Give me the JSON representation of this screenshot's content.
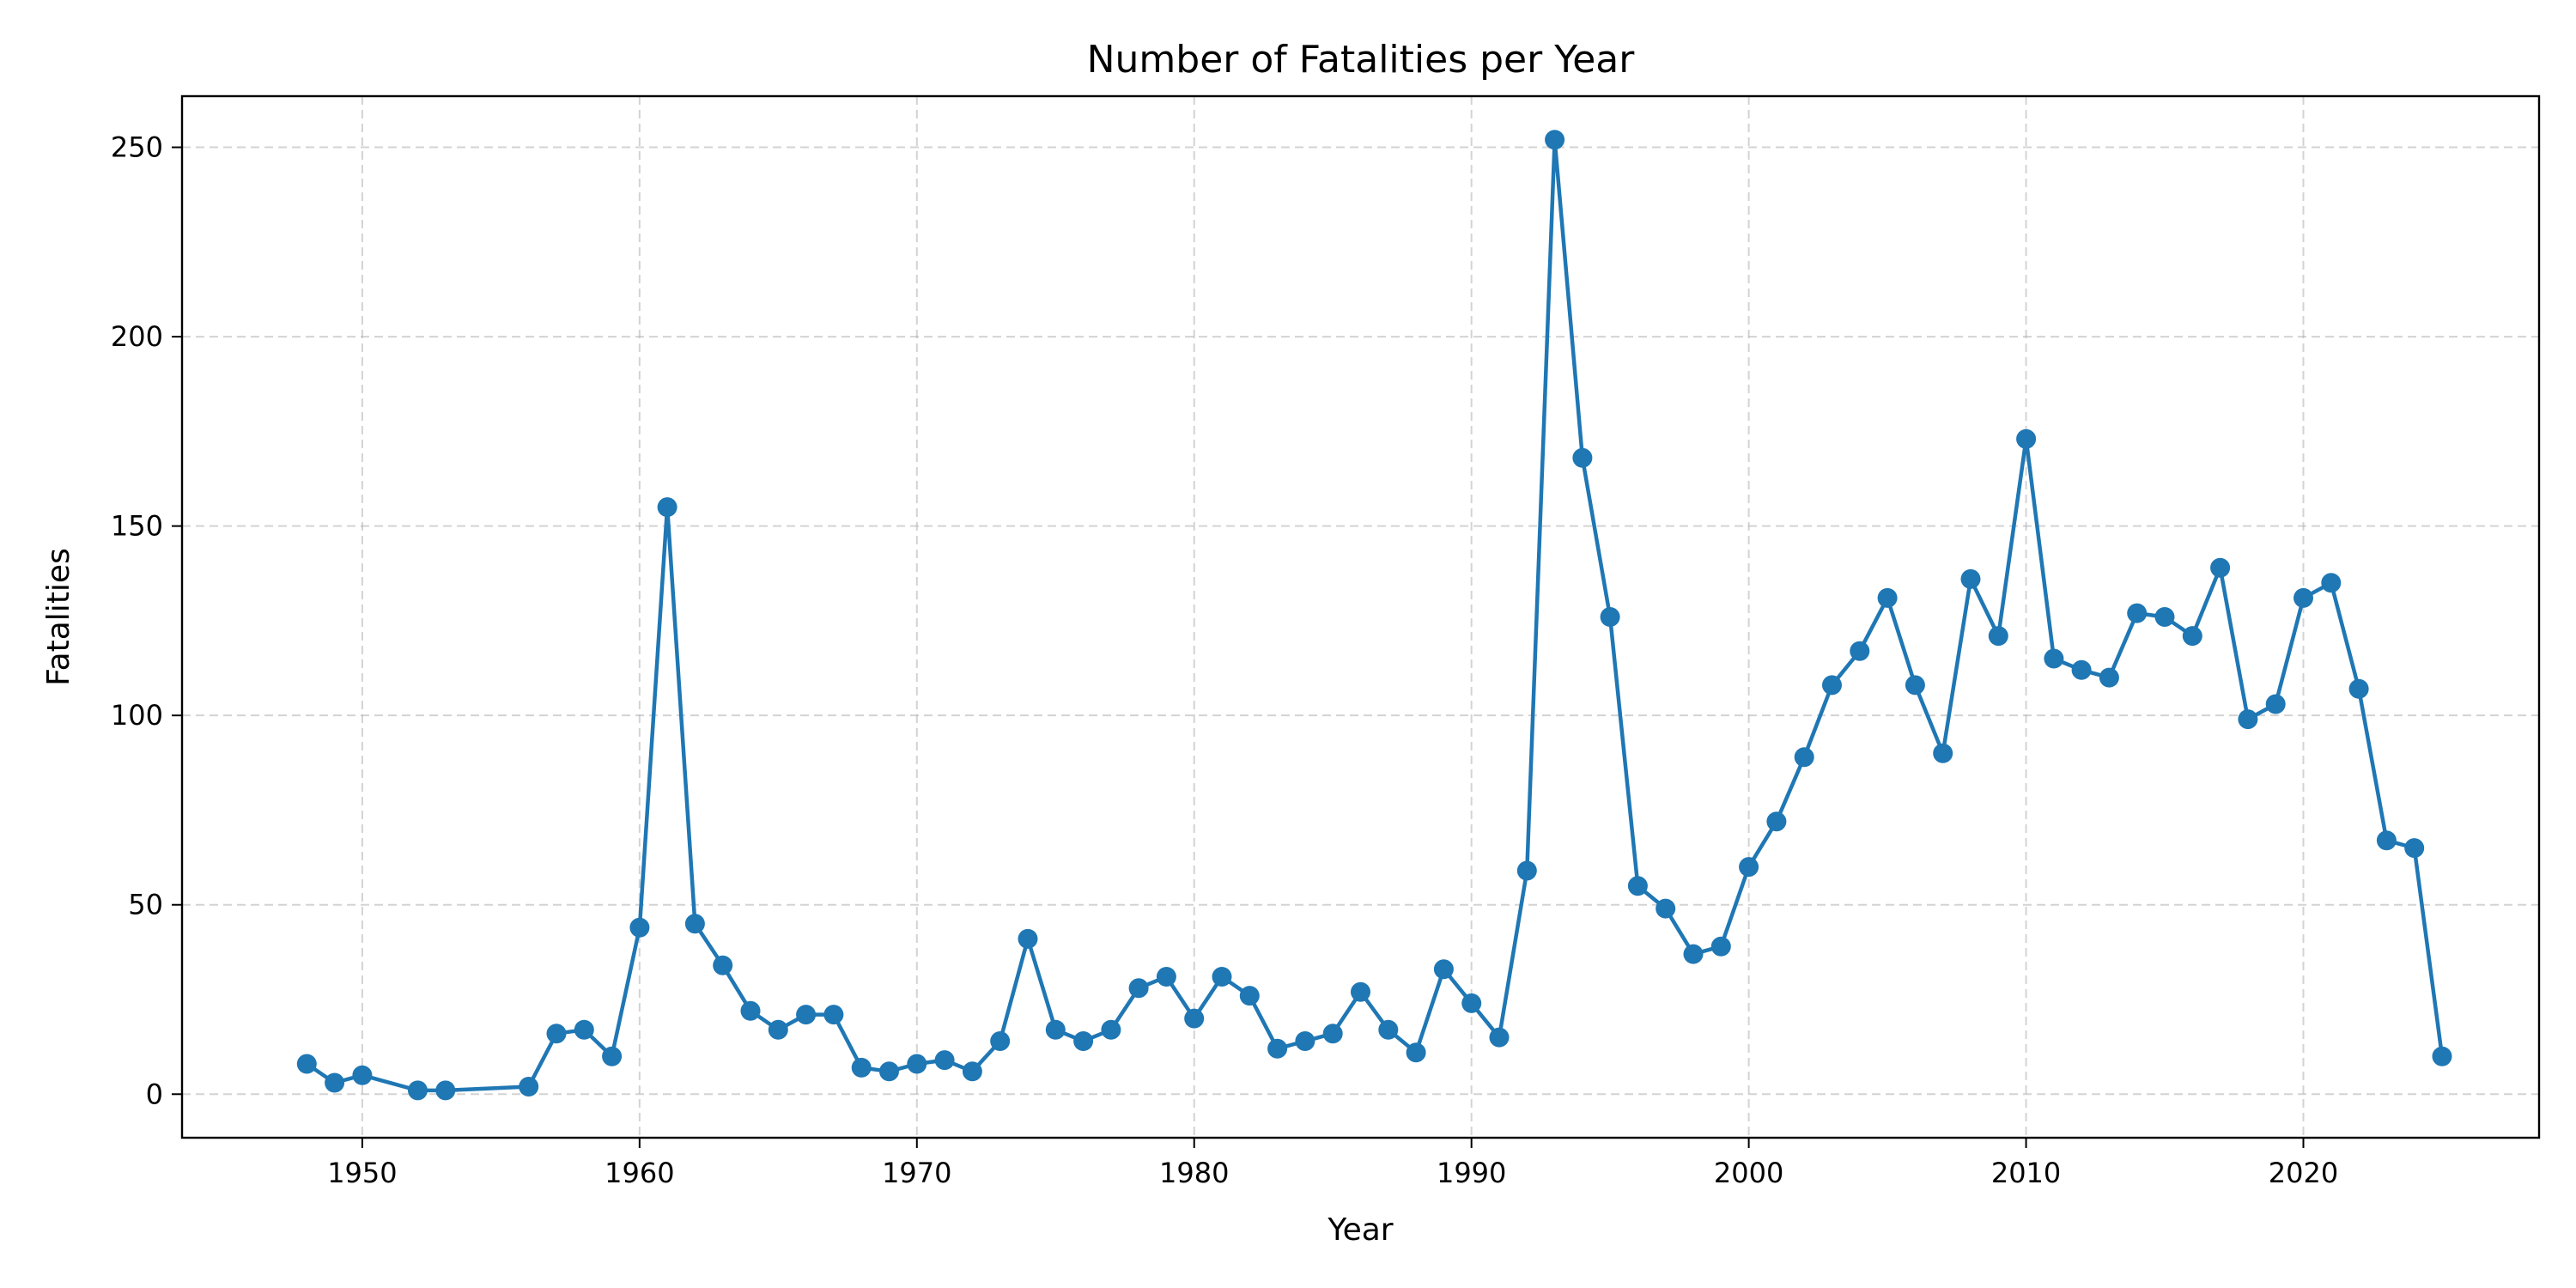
{
  "chart_data": {
    "type": "line",
    "title": "Number of Fatalities per Year",
    "xlabel": "Year",
    "ylabel": "Fatalities",
    "xlim": [
      1943.5,
      2028.5
    ],
    "ylim": [
      -11.5,
      263.5
    ],
    "xticks": [
      1950,
      1960,
      1970,
      1980,
      1990,
      2000,
      2010,
      2020
    ],
    "yticks": [
      0,
      50,
      100,
      150,
      200,
      250
    ],
    "grid": true,
    "legend": "none",
    "marker": "circle",
    "color": "#1f77b4",
    "series": [
      {
        "x": [
          1948,
          1949,
          1950,
          1952,
          1953,
          1956,
          1957,
          1958,
          1959,
          1960,
          1961,
          1962,
          1963,
          1964,
          1965,
          1966,
          1967,
          1968,
          1969,
          1970,
          1971,
          1972,
          1973,
          1974,
          1975,
          1976,
          1977,
          1978,
          1979,
          1980,
          1981,
          1982,
          1983,
          1984,
          1985,
          1986,
          1987,
          1988,
          1989,
          1990,
          1991,
          1992,
          1993,
          1994,
          1995,
          1996,
          1997,
          1998,
          1999,
          2000,
          2001,
          2002,
          2003,
          2004,
          2005,
          2006,
          2007,
          2008,
          2009,
          2010,
          2011,
          2012,
          2013,
          2014,
          2015,
          2016,
          2017,
          2018,
          2019,
          2020,
          2021,
          2022,
          2023,
          2024,
          2025
        ],
        "y": [
          8,
          3,
          5,
          1,
          1,
          2,
          16,
          17,
          10,
          44,
          155,
          45,
          34,
          22,
          17,
          21,
          21,
          7,
          6,
          8,
          9,
          6,
          14,
          41,
          17,
          14,
          17,
          28,
          31,
          20,
          31,
          26,
          12,
          14,
          16,
          27,
          17,
          11,
          33,
          24,
          15,
          59,
          252,
          168,
          126,
          55,
          49,
          37,
          39,
          60,
          72,
          89,
          108,
          117,
          131,
          108,
          90,
          136,
          121,
          173,
          115,
          112,
          110,
          127,
          126,
          121,
          139,
          99,
          103,
          131,
          135,
          107,
          67,
          65,
          10
        ]
      }
    ]
  }
}
